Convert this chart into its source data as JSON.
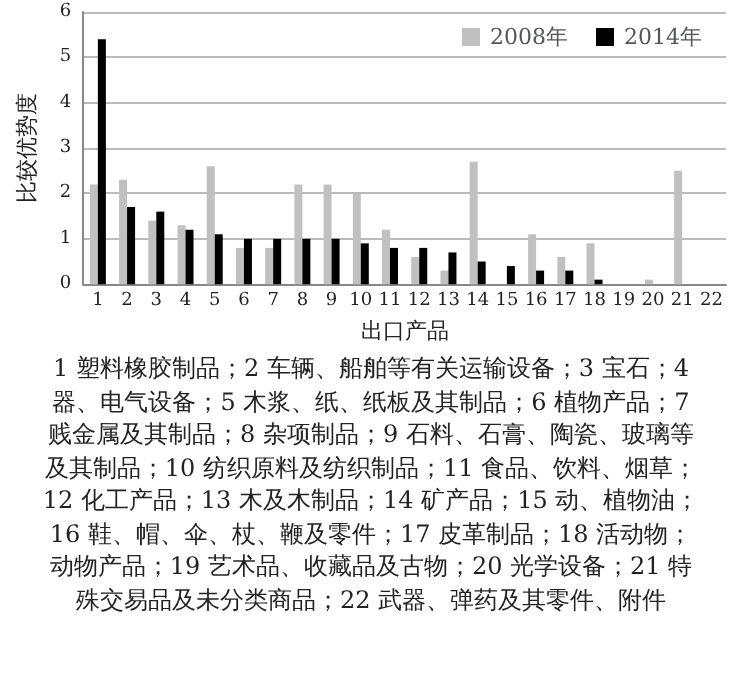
{
  "chart_data": {
    "type": "bar",
    "xlabel": "出口产品",
    "ylabel": "比较优势度",
    "categories": [
      "1",
      "2",
      "3",
      "4",
      "5",
      "6",
      "7",
      "8",
      "9",
      "10",
      "11",
      "12",
      "13",
      "14",
      "15",
      "16",
      "17",
      "18",
      "19",
      "20",
      "21",
      "22"
    ],
    "series": [
      {
        "name": "2008年",
        "color": "#c0c0c0",
        "values": [
          2.2,
          2.3,
          1.4,
          1.3,
          2.6,
          0.8,
          0.8,
          2.2,
          2.2,
          2.0,
          1.2,
          0.6,
          0.3,
          2.7,
          0,
          1.1,
          0.6,
          0.9,
          0,
          0.1,
          2.5,
          0
        ]
      },
      {
        "name": "2014年",
        "color": "#000000",
        "values": [
          5.4,
          1.7,
          1.6,
          1.2,
          1.1,
          1.0,
          1.0,
          1.0,
          1.0,
          0.9,
          0.8,
          0.8,
          0.7,
          0.5,
          0.4,
          0.3,
          0.3,
          0.1,
          0,
          0,
          0,
          0
        ]
      }
    ],
    "ylim": [
      0,
      6
    ],
    "yticks": [
      0,
      1,
      2,
      3,
      4,
      5,
      6
    ],
    "grid": "y",
    "legend": "top right",
    "annotations": [
      "1 塑料橡胶制品；2 车辆、船舶等有关运输设备；3 宝石；4 器、电气设备；5 木浆、纸、纸板及其制品；6 植物产品；7 贱金属及其制品；8 杂项制品；9 石料、石膏、陶瓷、玻璃等及其制品；10 纺织原料及纺织制品；11 食品、饮料、烟草；12 化工产品；13 木及木制品；14 矿产品；15 动、植物油；16 鞋、帽、伞、杖、鞭及零件；17 皮革制品；18 活动物；动物产品；19 艺术品、收藏品及古物；20 光学设备；21 特殊交易品及未分类商品；22 武器、弹药及其零件、附件"
    ]
  }
}
